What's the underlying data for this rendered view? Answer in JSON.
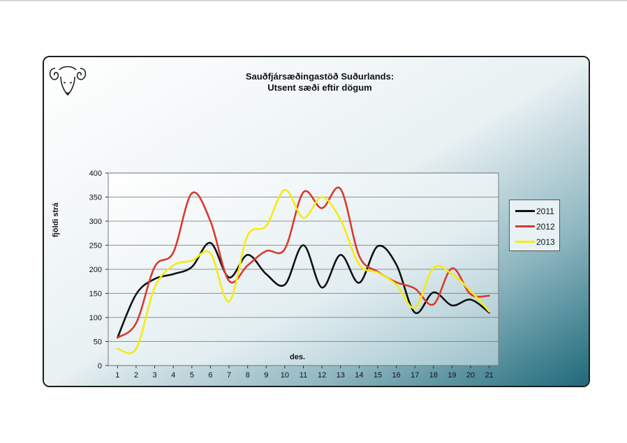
{
  "chart_data": {
    "type": "line",
    "title": "Sauðfjársæðingastöð Suðurlands:",
    "subtitle": "Utsent sæði eftir dögum",
    "xlabel": "des.",
    "ylabel": "fjöldi strá",
    "x": [
      1,
      2,
      3,
      4,
      5,
      6,
      7,
      8,
      9,
      10,
      11,
      12,
      13,
      14,
      15,
      16,
      17,
      18,
      19,
      20,
      21
    ],
    "ylim": [
      0,
      400
    ],
    "yticks": [
      0,
      50,
      100,
      150,
      200,
      250,
      300,
      350,
      400
    ],
    "grid": true,
    "legend_position": "right",
    "series": [
      {
        "name": "2011",
        "color": "#111111",
        "values": [
          58,
          148,
          180,
          190,
          205,
          255,
          183,
          230,
          190,
          168,
          250,
          162,
          230,
          172,
          248,
          210,
          110,
          152,
          125,
          137,
          110
        ]
      },
      {
        "name": "2012",
        "color": "#d93a2f",
        "values": [
          58,
          88,
          205,
          235,
          358,
          300,
          176,
          208,
          238,
          242,
          360,
          327,
          367,
          228,
          195,
          173,
          160,
          127,
          202,
          148,
          145
        ]
      },
      {
        "name": "2013",
        "color": "#f4ec12",
        "values": [
          35,
          35,
          162,
          208,
          218,
          233,
          133,
          270,
          290,
          365,
          307,
          350,
          303,
          210,
          193,
          168,
          120,
          203,
          190,
          155,
          112
        ]
      }
    ]
  },
  "colors": {
    "background_light": "#f7fafa",
    "background_dark": "#1f6a7a",
    "plot_area": "#ffffff",
    "border": "#1c1c1c"
  },
  "icons": {
    "logo": "ram-head-logo"
  }
}
